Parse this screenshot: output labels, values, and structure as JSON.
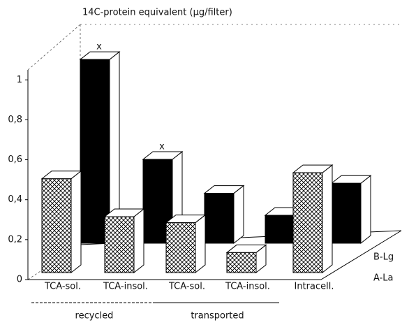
{
  "chart_data": {
    "type": "bar3d",
    "title": "14C-protein equivalent (µg/filter)",
    "categories": [
      "TCA-sol.",
      "TCA-insol.",
      "TCA-sol.",
      "TCA-insol.",
      "Intracell."
    ],
    "groups": [
      {
        "label": "recycled",
        "span": [
          0,
          1
        ]
      },
      {
        "label": "transported",
        "span": [
          2,
          3
        ]
      }
    ],
    "series": [
      {
        "name": "A-La",
        "color": "#ffffff",
        "pattern": "crosshatch",
        "values": [
          0.47,
          0.28,
          0.25,
          0.1,
          0.5
        ]
      },
      {
        "name": "B-Lg",
        "color": "#000000",
        "values": [
          0.92,
          0.42,
          0.25,
          0.14,
          0.3
        ],
        "annotations": [
          "x",
          "x",
          null,
          null,
          null
        ]
      }
    ],
    "ylim": [
      0,
      1.05
    ],
    "yticks": [
      0,
      {
        "value": 0.2,
        "label": "0,2"
      },
      {
        "value": 0.4,
        "label": "0,4"
      },
      {
        "value": 0.6,
        "label": "0,6"
      },
      {
        "value": 0.8,
        "label": "0,8"
      },
      1
    ]
  }
}
